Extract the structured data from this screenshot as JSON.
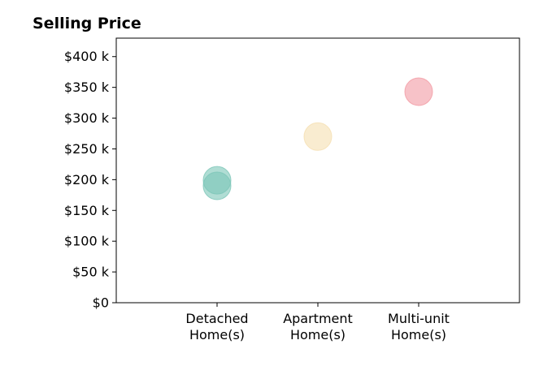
{
  "chart_data": {
    "type": "scatter",
    "title": "Selling Price",
    "xlabel": "",
    "ylabel": "",
    "categories": [
      "Detached\nHome(s)",
      "Apartment\nHome(s)",
      "Multi-unit\nHome(s)"
    ],
    "points": [
      {
        "category": 0,
        "value": 199000,
        "color": "#7cc6b8"
      },
      {
        "category": 0,
        "value": 190000,
        "color": "#7cc6b8"
      },
      {
        "category": 1,
        "value": 270000,
        "color": "#f5dfb0"
      },
      {
        "category": 2,
        "value": 343000,
        "color": "#f29aa3"
      }
    ],
    "yticks": [
      {
        "value": 0,
        "label": "$0"
      },
      {
        "value": 50000,
        "label": "$50 k"
      },
      {
        "value": 100000,
        "label": "$100 k"
      },
      {
        "value": 150000,
        "label": "$150 k"
      },
      {
        "value": 200000,
        "label": "$200 k"
      },
      {
        "value": 250000,
        "label": "$250 k"
      },
      {
        "value": 300000,
        "label": "$300 k"
      },
      {
        "value": 350000,
        "label": "$350 k"
      },
      {
        "value": 400000,
        "label": "$400 k"
      }
    ],
    "ylim": [
      0,
      430000
    ],
    "xlim": [
      -1,
      3
    ],
    "grid": false
  }
}
